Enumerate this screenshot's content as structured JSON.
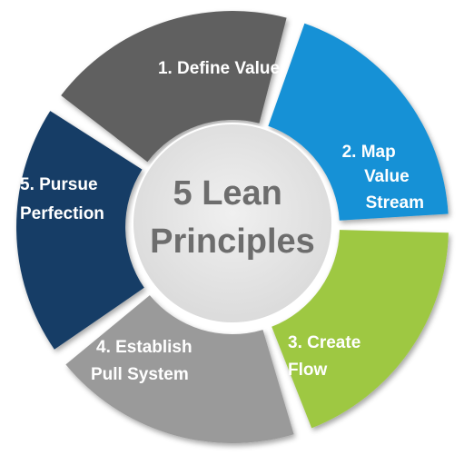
{
  "center": {
    "line1": "5 Lean",
    "line2": "Principles"
  },
  "segments": [
    {
      "lines": [
        "1. Define Value"
      ],
      "color": "#606060"
    },
    {
      "lines": [
        "2. Map",
        "Value",
        "Stream"
      ],
      "color": "#1691d6"
    },
    {
      "lines": [
        "3. Create",
        "Flow"
      ],
      "color": "#9ec843"
    },
    {
      "lines": [
        "4. Establish",
        "Pull System"
      ],
      "color": "#9a9a9a"
    },
    {
      "lines": [
        "5. Pursue",
        "Perfection"
      ],
      "color": "#163d66"
    }
  ],
  "center_circle_color": "#e5e5e5"
}
